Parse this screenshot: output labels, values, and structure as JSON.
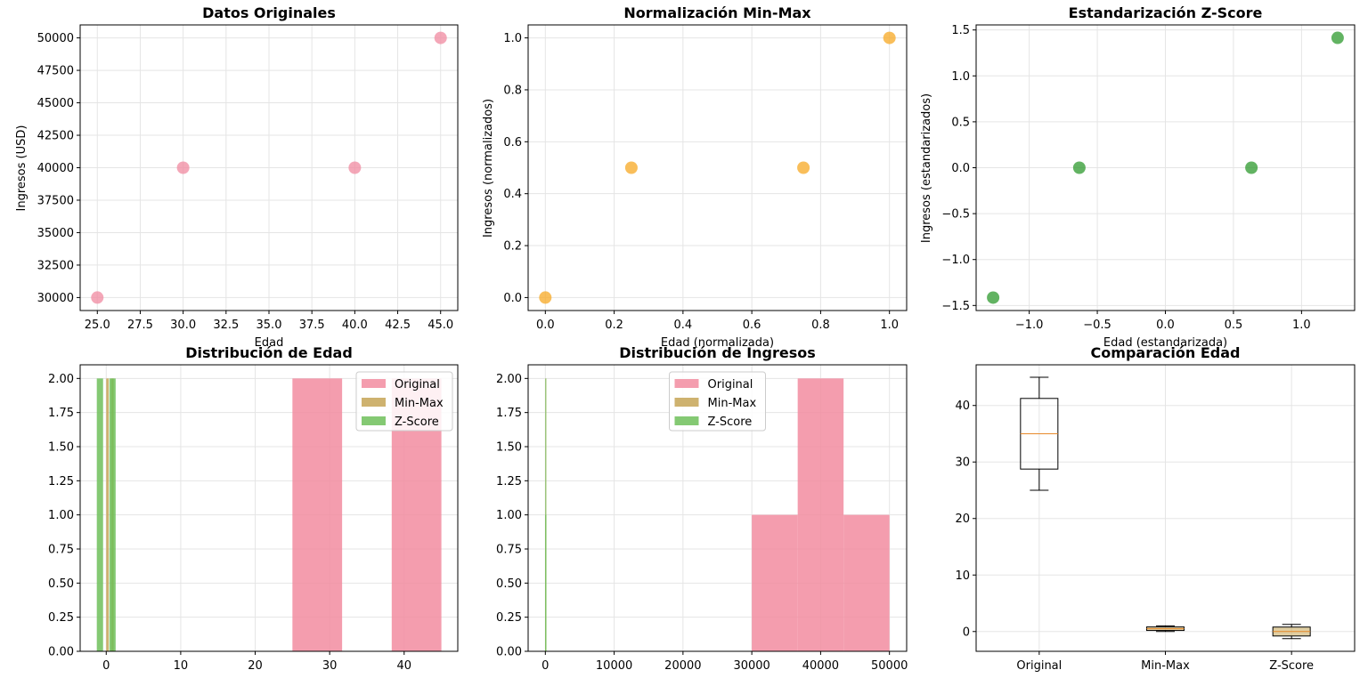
{
  "figure": {
    "colors": {
      "original": "#f28ca0",
      "minmax": "#c6a556",
      "zscore": "#6fbf5a",
      "scatter_original": "#f08aa0",
      "scatter_minmax": "#f7a823",
      "scatter_zscore": "#2e9a2e",
      "median": "#e88a2b"
    }
  },
  "chart_data": [
    {
      "type": "scatter",
      "title": "Datos Originales",
      "xlabel": "Edad",
      "ylabel": "Ingresos (USD)",
      "xlim": [
        24,
        46
      ],
      "ylim": [
        29000,
        51000
      ],
      "xticks": [
        25.0,
        27.5,
        30.0,
        32.5,
        35.0,
        37.5,
        40.0,
        42.5,
        45.0
      ],
      "xticklabels": [
        "25.0",
        "27.5",
        "30.0",
        "32.5",
        "35.0",
        "37.5",
        "40.0",
        "42.5",
        "45.0"
      ],
      "yticks": [
        30000,
        32500,
        35000,
        37500,
        40000,
        42500,
        45000,
        47500,
        50000
      ],
      "yticklabels": [
        "30000",
        "32500",
        "35000",
        "37500",
        "40000",
        "42500",
        "45000",
        "47500",
        "50000"
      ],
      "grid": true,
      "color": "#f08aa0",
      "points": [
        [
          25,
          30000
        ],
        [
          30,
          40000
        ],
        [
          40,
          40000
        ],
        [
          45,
          50000
        ]
      ]
    },
    {
      "type": "scatter",
      "title": "Normalización Min-Max",
      "xlabel": "Edad (normalizada)",
      "ylabel": "Ingresos (normalizados)",
      "xlim": [
        -0.05,
        1.05
      ],
      "ylim": [
        -0.05,
        1.05
      ],
      "xticks": [
        0,
        0.2,
        0.4,
        0.6,
        0.8,
        1.0
      ],
      "xticklabels": [
        "0.0",
        "0.2",
        "0.4",
        "0.6",
        "0.8",
        "1.0"
      ],
      "yticks": [
        0,
        0.2,
        0.4,
        0.6,
        0.8,
        1.0
      ],
      "yticklabels": [
        "0.0",
        "0.2",
        "0.4",
        "0.6",
        "0.8",
        "1.0"
      ],
      "grid": true,
      "color": "#f7a823",
      "points": [
        [
          0,
          0
        ],
        [
          0.25,
          0.5
        ],
        [
          0.75,
          0.5
        ],
        [
          1,
          1
        ]
      ]
    },
    {
      "type": "scatter",
      "title": "Estandarización Z-Score",
      "xlabel": "Edad (estandarizada)",
      "ylabel": "Ingresos (estandarizados)",
      "xlim": [
        -1.39,
        1.39
      ],
      "ylim": [
        -1.555,
        1.555
      ],
      "xticks": [
        -1.0,
        -0.5,
        0.0,
        0.5,
        1.0
      ],
      "xticklabels": [
        "−1.0",
        "−0.5",
        "0.0",
        "0.5",
        "1.0"
      ],
      "yticks": [
        -1.5,
        -1.0,
        -0.5,
        0.0,
        0.5,
        1.0,
        1.5
      ],
      "yticklabels": [
        "−1.5",
        "−1.0",
        "−0.5",
        "0.0",
        "0.5",
        "1.0",
        "1.5"
      ],
      "grid": true,
      "color": "#2e9a2e",
      "points": [
        [
          -1.265,
          -1.414
        ],
        [
          -0.632,
          0
        ],
        [
          0.632,
          0
        ],
        [
          1.265,
          1.414
        ]
      ]
    },
    {
      "type": "bar",
      "title": "Distribución de Edad",
      "xlim": [
        -3.5,
        47.2
      ],
      "ylim": [
        0,
        2.1
      ],
      "xticks": [
        0,
        10,
        20,
        30,
        40
      ],
      "xticklabels": [
        "0",
        "10",
        "20",
        "30",
        "40"
      ],
      "yticks": [
        0,
        0.25,
        0.5,
        0.75,
        1.0,
        1.25,
        1.5,
        1.75,
        2.0
      ],
      "yticklabels": [
        "0.00",
        "0.25",
        "0.50",
        "0.75",
        "1.00",
        "1.25",
        "1.50",
        "1.75",
        "2.00"
      ],
      "grid": true,
      "legend": "upper right",
      "series": [
        {
          "name": "Original",
          "color": "#f28ca0",
          "bins": [
            [
              25,
              31.67,
              2
            ],
            [
              38.33,
              45,
              2
            ]
          ]
        },
        {
          "name": "Min-Max",
          "color": "#c6a556",
          "bins": [
            [
              0,
              0.333,
              2
            ],
            [
              0.667,
              1,
              2
            ]
          ]
        },
        {
          "name": "Z-Score",
          "color": "#6fbf5a",
          "bins": [
            [
              -1.265,
              -0.422,
              2
            ],
            [
              0.422,
              1.265,
              2
            ]
          ]
        }
      ]
    },
    {
      "type": "bar",
      "title": "Distribución de Ingresos",
      "xlim": [
        -2500,
        52500
      ],
      "ylim": [
        0,
        2.1
      ],
      "xticks": [
        0,
        10000,
        20000,
        30000,
        40000,
        50000
      ],
      "xticklabels": [
        "0",
        "10000",
        "20000",
        "30000",
        "40000",
        "50000"
      ],
      "yticks": [
        0,
        0.25,
        0.5,
        0.75,
        1.0,
        1.25,
        1.5,
        1.75,
        2.0
      ],
      "yticklabels": [
        "0.00",
        "0.25",
        "0.50",
        "0.75",
        "1.00",
        "1.25",
        "1.50",
        "1.75",
        "2.00"
      ],
      "grid": true,
      "legend": "upper center",
      "series": [
        {
          "name": "Original",
          "color": "#f28ca0",
          "bins": [
            [
              30000,
              36667,
              1
            ],
            [
              36667,
              43333,
              2
            ],
            [
              43333,
              50000,
              1
            ]
          ]
        },
        {
          "name": "Min-Max",
          "color": "#c6a556",
          "bins": [
            [
              0,
              0.333,
              1
            ],
            [
              0.333,
              0.667,
              2
            ],
            [
              0.667,
              1,
              1
            ]
          ]
        },
        {
          "name": "Z-Score",
          "color": "#6fbf5a",
          "bins": [
            [
              -1.414,
              -0.471,
              1
            ],
            [
              -0.471,
              0.471,
              2
            ],
            [
              0.471,
              1.414,
              1
            ]
          ]
        }
      ]
    },
    {
      "type": "box",
      "title": "Comparación Edad",
      "ylim": [
        -3.5,
        47.2
      ],
      "yticks": [
        0,
        10,
        20,
        30,
        40
      ],
      "yticklabels": [
        "0",
        "10",
        "20",
        "30",
        "40"
      ],
      "categories": [
        "Original",
        "Min-Max",
        "Z-Score"
      ],
      "grid": true,
      "boxes": [
        {
          "min": 25,
          "q1": 28.75,
          "median": 35,
          "q3": 41.25,
          "max": 45
        },
        {
          "min": 0,
          "q1": 0.1875,
          "median": 0.5,
          "q3": 0.8125,
          "max": 1
        },
        {
          "min": -1.265,
          "q1": -0.791,
          "median": 0,
          "q3": 0.791,
          "max": 1.265
        }
      ]
    }
  ]
}
